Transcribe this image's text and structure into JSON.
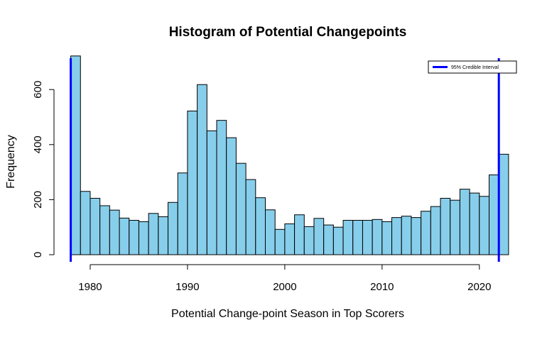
{
  "chart_data": {
    "type": "bar",
    "title": "Histogram of Potential Changepoints",
    "xlabel": "Potential Change-point Season in Top Scorers",
    "ylabel": "Frequency",
    "bin_width": 1,
    "x_bin_starts": [
      1978,
      1979,
      1980,
      1981,
      1982,
      1983,
      1984,
      1985,
      1986,
      1987,
      1988,
      1989,
      1990,
      1991,
      1992,
      1993,
      1994,
      1995,
      1996,
      1997,
      1998,
      1999,
      2000,
      2001,
      2002,
      2003,
      2004,
      2005,
      2006,
      2007,
      2008,
      2009,
      2010,
      2011,
      2012,
      2013,
      2014,
      2015,
      2016,
      2017,
      2018,
      2019,
      2020,
      2021,
      2022
    ],
    "values": [
      722,
      230,
      205,
      178,
      162,
      133,
      125,
      120,
      150,
      138,
      190,
      297,
      522,
      618,
      450,
      488,
      425,
      332,
      273,
      207,
      163,
      92,
      112,
      145,
      102,
      132,
      108,
      100,
      125,
      125,
      125,
      128,
      120,
      135,
      140,
      135,
      158,
      175,
      205,
      198,
      238,
      224,
      212,
      290,
      365
    ],
    "xticks": [
      "1980",
      "1990",
      "2000",
      "2010",
      "2020"
    ],
    "yticks": [
      "0",
      "200",
      "400",
      "600"
    ],
    "xlim": [
      1977.3,
      2023.3
    ],
    "ylim": [
      0,
      750
    ],
    "bar_color": "#87CEEB",
    "interval_lines": {
      "x": [
        1978,
        2022
      ],
      "color": "#0000FF"
    },
    "legend": {
      "label": "95% Credible Interval",
      "position": "top-right",
      "color": "#0000FF"
    }
  }
}
